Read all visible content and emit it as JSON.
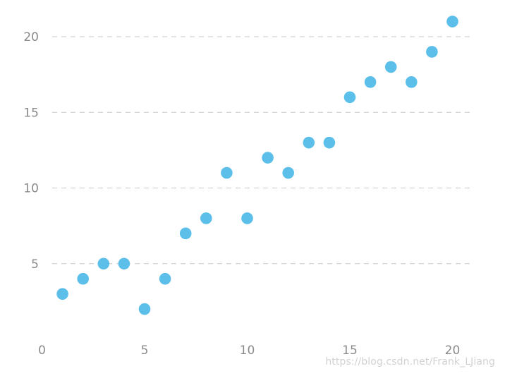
{
  "chart_data": {
    "type": "scatter",
    "title": "",
    "xlabel": "",
    "ylabel": "",
    "xlim": [
      0,
      21
    ],
    "ylim": [
      0,
      22
    ],
    "x_ticks": [
      0,
      5,
      10,
      15,
      20
    ],
    "y_ticks": [
      5,
      10,
      15,
      20
    ],
    "grid": "horizontal-dashed",
    "series": [
      {
        "x": [
          1,
          2,
          3,
          4,
          5,
          6,
          7,
          8,
          9,
          10,
          11,
          12,
          13,
          14,
          15,
          16,
          17,
          18,
          19,
          20
        ],
        "y": [
          3,
          4,
          5,
          5,
          2,
          4,
          7,
          8,
          11,
          8,
          12,
          11,
          13,
          13,
          16,
          17,
          18,
          17,
          19,
          21
        ]
      }
    ],
    "colors": {
      "point": "#5bbfea",
      "grid": "#c9c9c9",
      "tick_text": "#8a8a8a"
    }
  },
  "watermark": "https://blog.csdn.net/Frank_LJiang"
}
